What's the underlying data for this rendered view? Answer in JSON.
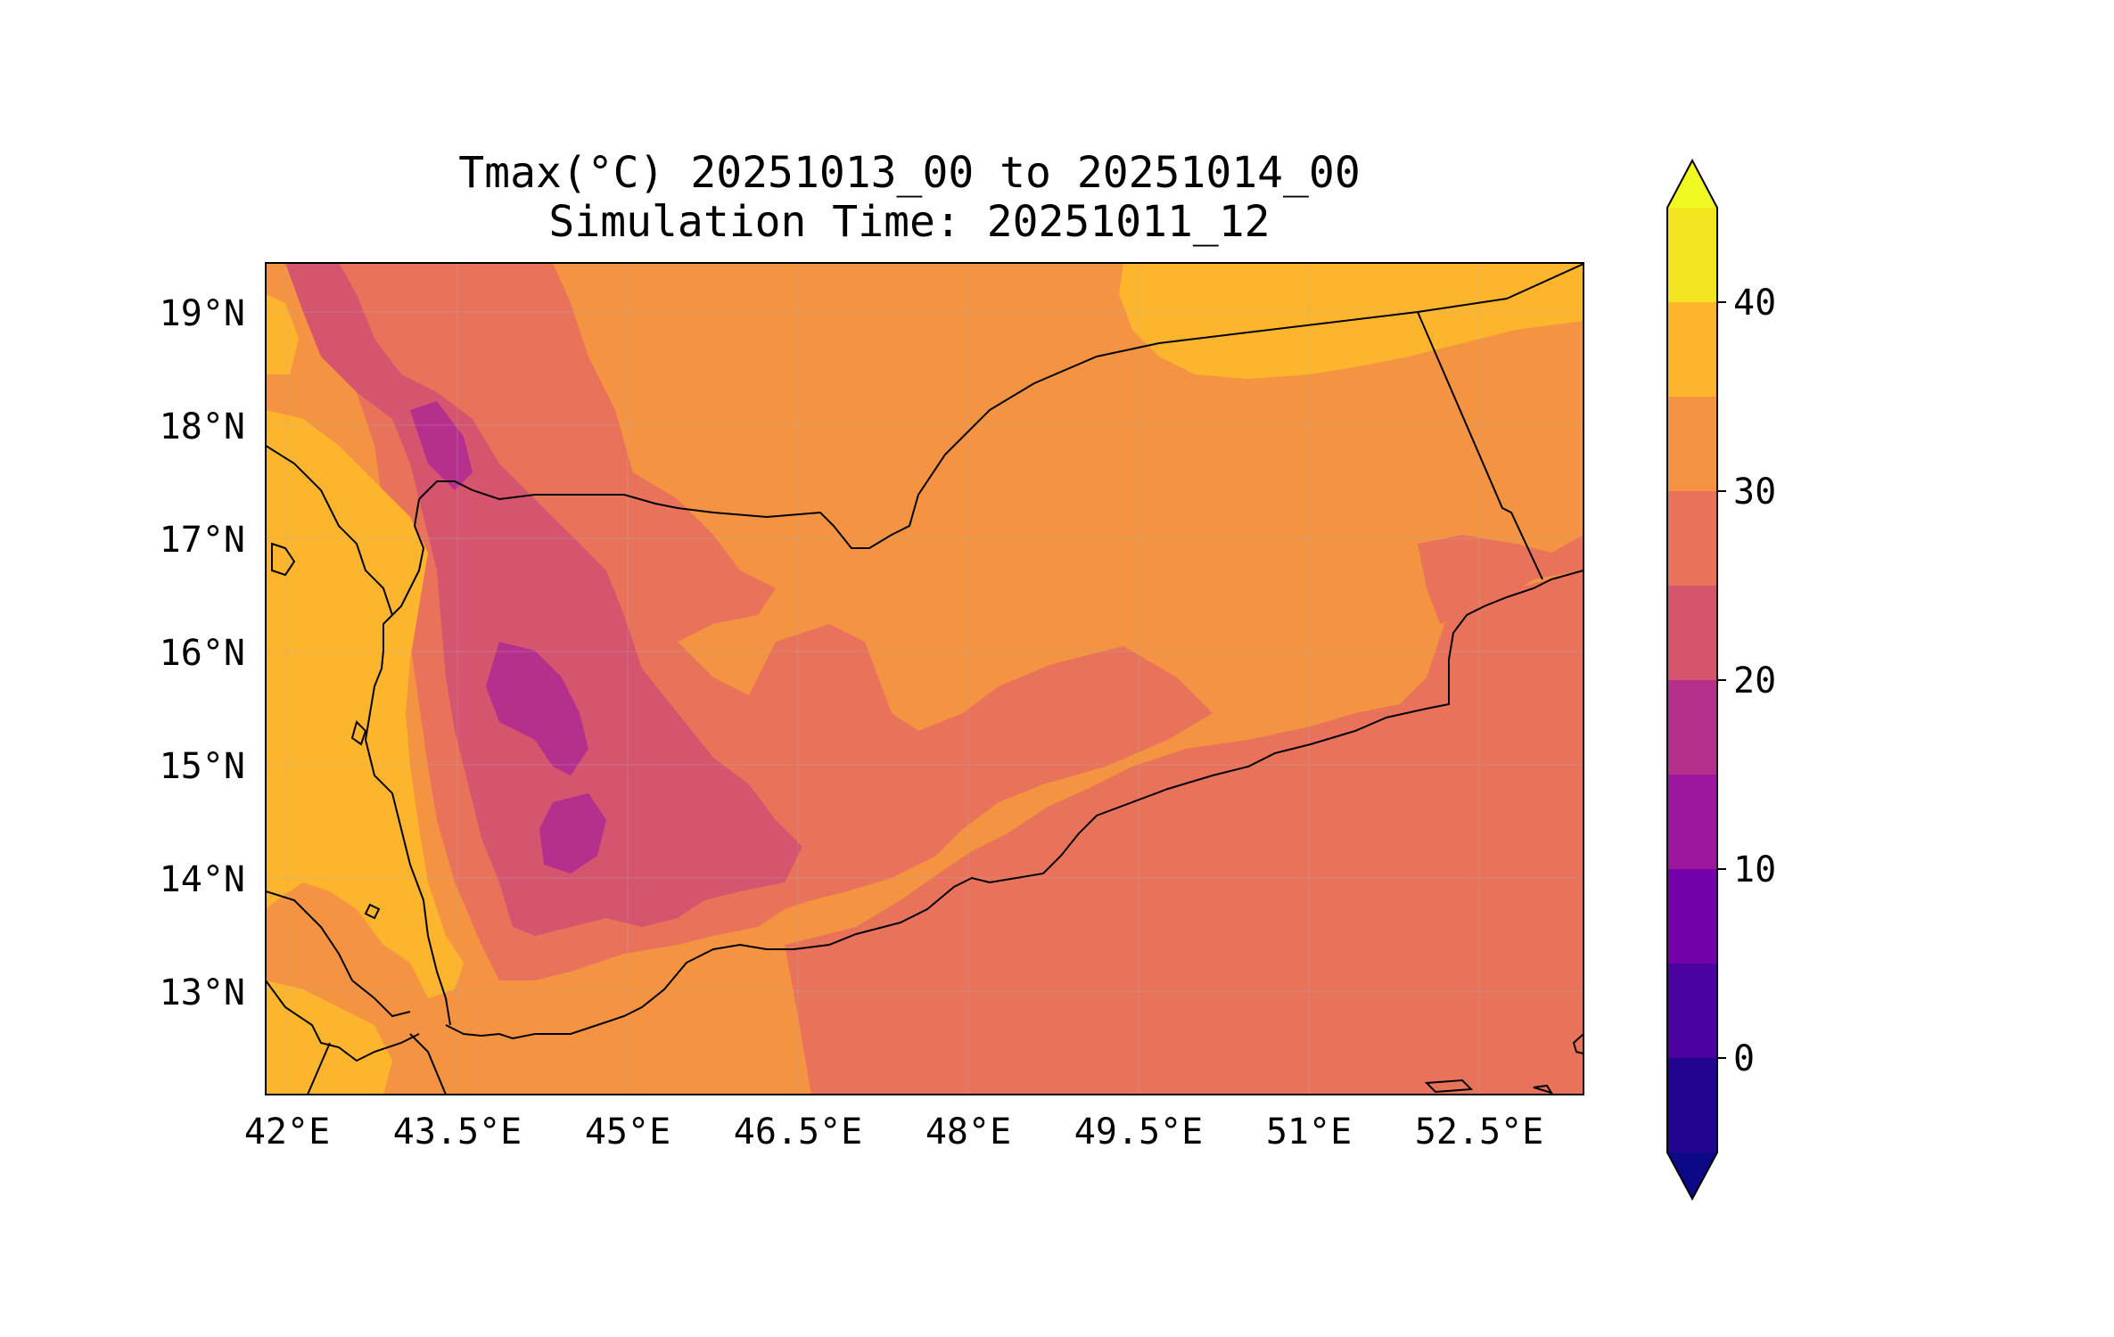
{
  "title": {
    "line1": "Tmax(°C) 20251013_00 to 20251014_00",
    "line2": "Simulation Time: 20251011_12"
  },
  "map": {
    "region": "Yemen",
    "lon_range": [
      41.9,
      53.6
    ],
    "lat_range": [
      12.1,
      19.45
    ],
    "lon_ticks": [
      "42°E",
      "43.5°E",
      "45°E",
      "46.5°E",
      "48°E",
      "49.5°E",
      "51°E",
      "52.5°E"
    ],
    "lat_ticks": [
      "19°N",
      "18°N",
      "17°N",
      "16°N",
      "15°N",
      "14°N",
      "13°N"
    ]
  },
  "colorbar": {
    "ticks": [
      "40",
      "30",
      "20",
      "10",
      "0"
    ],
    "levels": [
      -5,
      0,
      5,
      10,
      15,
      20,
      25,
      30,
      35,
      40,
      45
    ],
    "extend": "both",
    "colors": {
      "under": "#0d0887",
      "b_m5_0": "#23048f",
      "b_0_5": "#4c02a1",
      "b_5_10": "#7201a8",
      "b_10_15": "#9c179e",
      "b_15_20": "#b52f8c",
      "b_20_25": "#d5546e",
      "b_25_30": "#e8735a",
      "b_30_35": "#f49442",
      "b_35_40": "#fdb52e",
      "b_40_45": "#f3e420",
      "over": "#f0f921"
    }
  }
}
